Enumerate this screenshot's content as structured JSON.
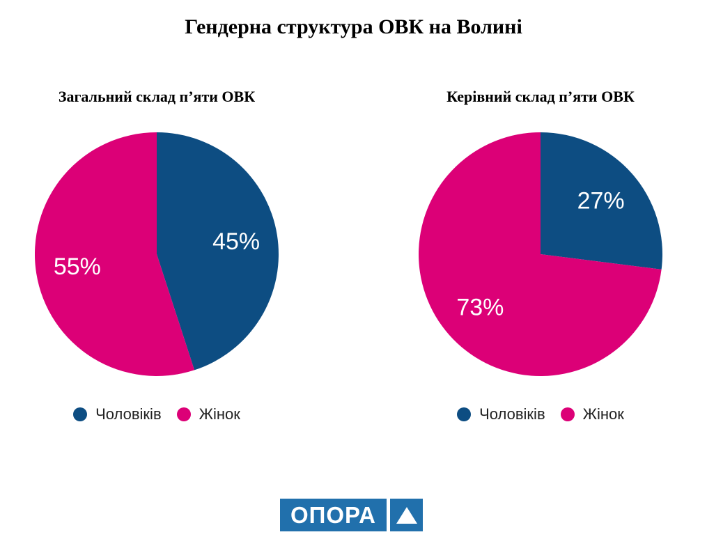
{
  "page": {
    "title": "Гендерна структура ОВК на Волині",
    "background_color": "#ffffff"
  },
  "colors": {
    "men_blue": "#0d4d82",
    "women_pink": "#dc0077",
    "pie_label_text": "#ffffff",
    "legend_text": "#222222",
    "logo_blue": "#2170ac"
  },
  "chart_data": [
    {
      "type": "pie",
      "title": "Загальний склад п’яти ОВК",
      "categories": [
        "Чоловіків",
        "Жінок"
      ],
      "slice_names": [
        "men",
        "women"
      ],
      "values": [
        45,
        55
      ],
      "value_labels": [
        "45%",
        "55%"
      ],
      "slice_colors": [
        "#0d4d82",
        "#dc0077"
      ],
      "start_angle_deg": 0,
      "direction": "clockwise",
      "label_radius_fraction": 0.66,
      "label_font_px": 34,
      "label_color": "#ffffff",
      "legend_position": "bottom"
    },
    {
      "type": "pie",
      "title": "Керівний склад п’яти ОВК",
      "categories": [
        "Чоловіків",
        "Жінок"
      ],
      "slice_names": [
        "men",
        "women"
      ],
      "values": [
        27,
        73
      ],
      "value_labels": [
        "27%",
        "73%"
      ],
      "slice_colors": [
        "#0d4d82",
        "#dc0077"
      ],
      "start_angle_deg": 0,
      "direction": "clockwise",
      "label_radius_fraction": 0.66,
      "label_font_px": 34,
      "label_color": "#ffffff",
      "legend_position": "bottom"
    }
  ],
  "logo": {
    "text": "ОПОРА",
    "box_color": "#2170ac",
    "text_color": "#ffffff",
    "icon": "triangle-up-icon"
  }
}
